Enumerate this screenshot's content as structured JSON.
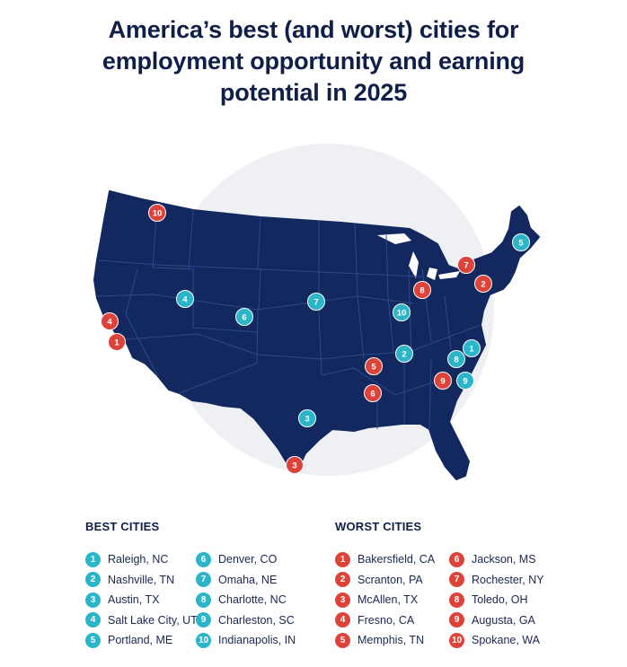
{
  "title_lines": [
    "America’s best (and worst) cities for",
    "employment opportunity and earning",
    "potential in 2025"
  ],
  "colors": {
    "best": "#2bb5c9",
    "worst": "#de4339",
    "map_fill": "#12285f",
    "map_lines": "#2d4a8c",
    "halo": "#eef0f4"
  },
  "legend": {
    "best_heading": "BEST CITIES",
    "worst_heading": "WORST CITIES",
    "best": [
      {
        "rank": "1",
        "city": "Raleigh, NC"
      },
      {
        "rank": "2",
        "city": "Nashville, TN"
      },
      {
        "rank": "3",
        "city": "Austin, TX"
      },
      {
        "rank": "4",
        "city": "Salt Lake City, UT"
      },
      {
        "rank": "5",
        "city": "Portland, ME"
      },
      {
        "rank": "6",
        "city": "Denver, CO"
      },
      {
        "rank": "7",
        "city": "Omaha, NE"
      },
      {
        "rank": "8",
        "city": "Charlotte, NC"
      },
      {
        "rank": "9",
        "city": "Charleston, SC"
      },
      {
        "rank": "10",
        "city": "Indianapolis, IN"
      }
    ],
    "worst": [
      {
        "rank": "1",
        "city": "Bakersfield, CA"
      },
      {
        "rank": "2",
        "city": "Scranton, PA"
      },
      {
        "rank": "3",
        "city": "McAllen, TX"
      },
      {
        "rank": "4",
        "city": "Fresno, CA"
      },
      {
        "rank": "5",
        "city": "Memphis, TN"
      },
      {
        "rank": "6",
        "city": "Jackson, MS"
      },
      {
        "rank": "7",
        "city": "Rochester, NY"
      },
      {
        "rank": "8",
        "city": "Toledo, OH"
      },
      {
        "rank": "9",
        "city": "Augusta, GA"
      },
      {
        "rank": "10",
        "city": "Spokane, WA"
      }
    ]
  }
}
